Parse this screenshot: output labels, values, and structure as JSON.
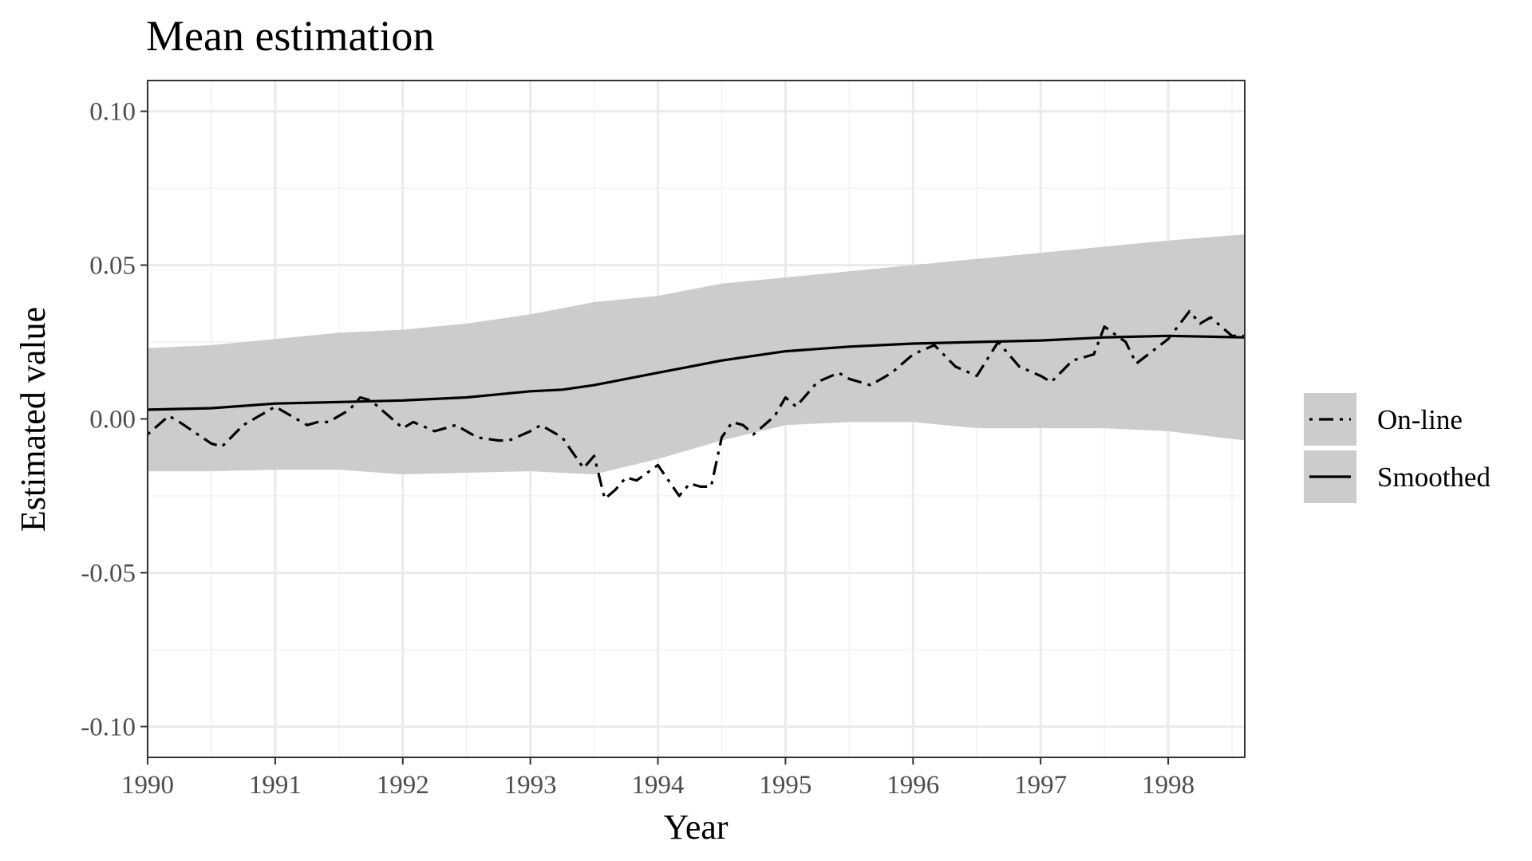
{
  "chart_data": {
    "type": "line",
    "title": "Mean estimation",
    "xlabel": "Year",
    "ylabel": "Estimated value",
    "xlim": [
      1990,
      1998.6
    ],
    "ylim": [
      -0.11,
      0.11
    ],
    "x_ticks": [
      1990,
      1991,
      1992,
      1993,
      1994,
      1995,
      1996,
      1997,
      1998
    ],
    "x_tick_labels": [
      "1990",
      "1991",
      "1992",
      "1993",
      "1994",
      "1995",
      "1996",
      "1997",
      "1998"
    ],
    "y_ticks": [
      -0.1,
      -0.05,
      0.0,
      0.05,
      0.1
    ],
    "y_tick_labels": [
      "-0.10",
      "-0.05",
      "0.00",
      "0.05",
      "0.10"
    ],
    "grid": true,
    "legend_position": "right",
    "colors": {
      "band": "#cccccc",
      "line": "#000000",
      "grid_major": "#ebebeb",
      "grid_minor": "#f2f2f2",
      "panel_border": "#333333"
    },
    "series": [
      {
        "name": "On-line",
        "line_style": "dotdash",
        "x": [
          1990.0,
          1990.167,
          1990.25,
          1990.5,
          1990.583,
          1990.75,
          1991.0,
          1991.25,
          1991.333,
          1991.417,
          1991.583,
          1991.667,
          1991.75,
          1992.0,
          1992.083,
          1992.25,
          1992.417,
          1992.583,
          1992.75,
          1992.833,
          1993.0,
          1993.083,
          1993.25,
          1993.417,
          1993.5,
          1993.583,
          1993.667,
          1993.75,
          1993.833,
          1994.0,
          1994.083,
          1994.167,
          1994.25,
          1994.333,
          1994.417,
          1994.5,
          1994.583,
          1994.667,
          1994.75,
          1994.917,
          1995.0,
          1995.083,
          1995.25,
          1995.417,
          1995.5,
          1995.667,
          1995.833,
          1996.0,
          1996.167,
          1996.333,
          1996.5,
          1996.667,
          1996.833,
          1997.0,
          1997.083,
          1997.25,
          1997.417,
          1997.5,
          1997.667,
          1997.75,
          1998.0,
          1998.167,
          1998.25,
          1998.333,
          1998.5,
          1998.6
        ],
        "values": [
          -0.005,
          0.001,
          -0.001,
          -0.008,
          -0.009,
          -0.002,
          0.004,
          -0.002,
          -0.001,
          -0.001,
          0.003,
          0.007,
          0.006,
          -0.003,
          -0.001,
          -0.004,
          -0.002,
          -0.006,
          -0.007,
          -0.007,
          -0.004,
          -0.002,
          -0.006,
          -0.016,
          -0.012,
          -0.026,
          -0.023,
          -0.019,
          -0.02,
          -0.015,
          -0.02,
          -0.025,
          -0.021,
          -0.022,
          -0.022,
          -0.006,
          -0.001,
          -0.002,
          -0.005,
          0.001,
          0.007,
          0.004,
          0.012,
          0.015,
          0.013,
          0.011,
          0.015,
          0.021,
          0.024,
          0.017,
          0.014,
          0.025,
          0.017,
          0.014,
          0.012,
          0.019,
          0.021,
          0.03,
          0.025,
          0.018,
          0.026,
          0.035,
          0.031,
          0.033,
          0.027,
          0.027
        ]
      },
      {
        "name": "Smoothed",
        "line_style": "solid",
        "x": [
          1990.0,
          1990.5,
          1991.0,
          1991.5,
          1992.0,
          1992.5,
          1993.0,
          1993.25,
          1993.5,
          1993.75,
          1994.0,
          1994.25,
          1994.5,
          1995.0,
          1995.5,
          1996.0,
          1996.5,
          1997.0,
          1997.5,
          1998.0,
          1998.6
        ],
        "values": [
          0.003,
          0.0035,
          0.005,
          0.0055,
          0.006,
          0.007,
          0.009,
          0.0095,
          0.011,
          0.013,
          0.015,
          0.017,
          0.019,
          0.022,
          0.0235,
          0.0245,
          0.025,
          0.0255,
          0.0265,
          0.027,
          0.0265
        ]
      }
    ],
    "band": {
      "applies_to": "Smoothed",
      "x": [
        1990.0,
        1990.5,
        1991.0,
        1991.5,
        1992.0,
        1992.5,
        1993.0,
        1993.5,
        1994.0,
        1994.5,
        1995.0,
        1995.5,
        1996.0,
        1996.5,
        1997.0,
        1997.5,
        1998.0,
        1998.6
      ],
      "upper": [
        0.023,
        0.024,
        0.026,
        0.028,
        0.029,
        0.031,
        0.034,
        0.038,
        0.04,
        0.044,
        0.046,
        0.048,
        0.05,
        0.052,
        0.054,
        0.056,
        0.058,
        0.06
      ],
      "lower": [
        -0.017,
        -0.017,
        -0.0165,
        -0.0165,
        -0.018,
        -0.0175,
        -0.017,
        -0.018,
        -0.013,
        -0.007,
        -0.002,
        -0.001,
        -0.001,
        -0.003,
        -0.003,
        -0.003,
        -0.004,
        -0.007
      ]
    }
  }
}
